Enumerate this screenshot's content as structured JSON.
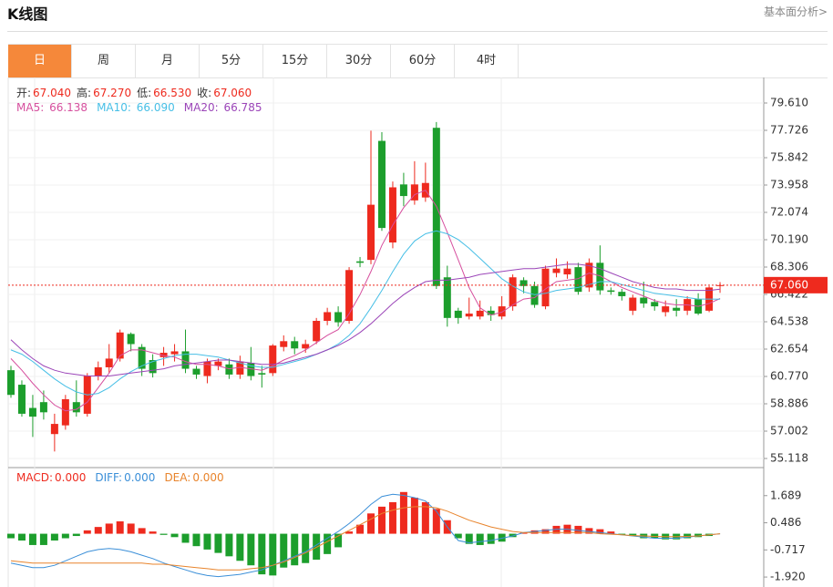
{
  "header": {
    "title": "K线图",
    "link": "基本面分析>"
  },
  "tabs": [
    "日",
    "周",
    "月",
    "5分",
    "15分",
    "30分",
    "60分",
    "4时"
  ],
  "active_tab": 0,
  "chart_data": [
    {
      "type": "candlestick",
      "ohlc_labels": [
        {
          "label": "开:",
          "value": "67.040"
        },
        {
          "label": "高:",
          "value": "67.270"
        },
        {
          "label": "低:",
          "value": "66.530"
        },
        {
          "label": "收:",
          "value": "67.060"
        }
      ],
      "up_color": "#ee2a1e",
      "down_color": "#1c9e2c",
      "open": [
        61.2,
        60.2,
        58.6,
        59.0,
        56.8,
        57.4,
        59.0,
        58.2,
        60.8,
        61.4,
        62.0,
        63.7,
        62.8,
        61.9,
        62.1,
        62.3,
        62.5,
        61.3,
        60.8,
        61.5,
        61.6,
        60.9,
        61.7,
        61.0,
        61.0,
        62.8,
        63.2,
        62.7,
        63.2,
        64.6,
        65.2,
        64.6,
        68.7,
        68.8,
        77.0,
        70.0,
        74.0,
        72.9,
        73.1,
        77.9,
        67.6,
        65.3,
        64.9,
        64.9,
        65.3,
        64.9,
        65.6,
        67.4,
        67.0,
        65.6,
        67.9,
        67.8,
        68.3,
        66.9,
        68.6,
        66.7,
        66.6,
        65.3,
        66.2,
        65.9,
        65.2,
        65.5,
        65.3,
        66.1,
        65.3,
        67.04
      ],
      "high": [
        61.5,
        60.5,
        59.5,
        59.8,
        58.2,
        59.5,
        60.5,
        61.0,
        61.8,
        63.0,
        64.0,
        63.8,
        63.0,
        62.3,
        62.8,
        63.0,
        64.0,
        61.5,
        62.0,
        62.0,
        62.0,
        62.2,
        62.8,
        61.5,
        63.0,
        63.6,
        63.5,
        63.3,
        64.8,
        65.5,
        65.6,
        68.3,
        69.0,
        77.7,
        77.6,
        74.2,
        74.8,
        75.6,
        75.5,
        78.3,
        68.4,
        65.5,
        66.2,
        66.0,
        65.6,
        66.3,
        67.8,
        67.6,
        67.3,
        68.4,
        68.9,
        68.7,
        68.6,
        68.9,
        69.8,
        66.9,
        66.8,
        66.4,
        67.3,
        66.1,
        66.0,
        66.1,
        66.3,
        66.5,
        67.0,
        67.27
      ],
      "low": [
        59.3,
        58.0,
        56.6,
        57.8,
        55.6,
        57.1,
        58.0,
        58.0,
        60.5,
        61.0,
        61.8,
        62.5,
        60.8,
        60.7,
        61.5,
        61.8,
        61.0,
        60.6,
        60.3,
        61.2,
        60.6,
        60.6,
        60.5,
        60.0,
        60.8,
        62.5,
        62.3,
        62.4,
        63.0,
        64.3,
        64.2,
        64.4,
        68.3,
        68.5,
        70.8,
        69.6,
        72.5,
        72.6,
        72.8,
        66.8,
        64.2,
        64.4,
        64.7,
        64.7,
        64.6,
        64.7,
        65.3,
        66.5,
        65.5,
        65.4,
        67.6,
        67.5,
        66.4,
        66.6,
        66.4,
        66.4,
        66.0,
        65.0,
        65.5,
        65.3,
        64.9,
        64.9,
        65.0,
        65.0,
        65.2,
        66.53
      ],
      "close": [
        59.5,
        58.2,
        58.0,
        58.3,
        57.5,
        59.2,
        58.3,
        60.8,
        61.4,
        62.0,
        63.8,
        63.0,
        61.3,
        61.0,
        62.4,
        62.5,
        61.3,
        60.9,
        61.8,
        61.8,
        60.9,
        61.8,
        60.8,
        60.9,
        62.9,
        63.2,
        62.7,
        63.0,
        64.6,
        65.2,
        64.5,
        68.1,
        68.6,
        72.6,
        71.0,
        73.8,
        73.2,
        74.0,
        74.1,
        67.0,
        64.8,
        64.8,
        65.1,
        65.3,
        65.0,
        65.6,
        67.6,
        67.0,
        65.7,
        68.2,
        68.2,
        68.2,
        66.6,
        68.6,
        66.7,
        66.6,
        66.3,
        66.2,
        65.8,
        65.6,
        65.6,
        65.3,
        66.1,
        65.1,
        66.9,
        67.06
      ],
      "series": [
        {
          "name": "MA5: ",
          "value_label": "66.138",
          "color": "#d64f9e",
          "values": [
            62.0,
            61.2,
            60.3,
            59.5,
            58.8,
            58.4,
            58.5,
            59.0,
            60.0,
            61.0,
            62.2,
            62.6,
            62.6,
            62.4,
            62.2,
            62.1,
            61.8,
            61.6,
            61.6,
            61.5,
            61.3,
            61.4,
            61.3,
            61.2,
            61.5,
            61.9,
            62.2,
            62.6,
            63.1,
            63.6,
            64.0,
            65.1,
            66.4,
            68.0,
            69.8,
            71.2,
            72.4,
            73.3,
            73.6,
            72.5,
            70.7,
            68.8,
            66.9,
            65.5,
            65.0,
            65.2,
            65.7,
            66.1,
            66.2,
            66.8,
            67.3,
            67.4,
            67.5,
            67.9,
            67.7,
            67.3,
            66.9,
            66.6,
            66.3,
            66.0,
            65.8,
            65.7,
            65.7,
            65.6,
            65.8,
            66.138
          ]
        },
        {
          "name": "MA10: ",
          "value_label": "66.090",
          "color": "#47bfe6",
          "values": [
            62.6,
            62.3,
            61.8,
            61.2,
            60.6,
            60.1,
            59.7,
            59.5,
            59.6,
            60.0,
            60.6,
            61.1,
            61.5,
            61.8,
            62.0,
            62.2,
            62.3,
            62.3,
            62.2,
            62.1,
            61.9,
            61.7,
            61.5,
            61.4,
            61.4,
            61.6,
            61.8,
            62.0,
            62.3,
            62.6,
            63.0,
            63.6,
            64.4,
            65.5,
            66.7,
            68.0,
            69.2,
            70.1,
            70.6,
            70.8,
            70.6,
            70.2,
            69.6,
            68.9,
            68.2,
            67.5,
            67.0,
            66.6,
            66.4,
            66.5,
            66.7,
            66.8,
            66.9,
            67.1,
            67.3,
            67.3,
            67.1,
            66.9,
            66.7,
            66.5,
            66.4,
            66.3,
            66.2,
            66.1,
            66.1,
            66.09
          ]
        },
        {
          "name": "MA20: ",
          "value_label": "66.785",
          "color": "#9b45b8",
          "values": [
            63.3,
            62.6,
            62.0,
            61.5,
            61.2,
            61.0,
            60.9,
            60.8,
            60.8,
            60.8,
            60.9,
            61.0,
            61.1,
            61.2,
            61.3,
            61.5,
            61.6,
            61.7,
            61.8,
            61.9,
            61.9,
            61.8,
            61.7,
            61.6,
            61.6,
            61.7,
            61.9,
            62.1,
            62.3,
            62.6,
            62.9,
            63.3,
            63.8,
            64.4,
            65.1,
            65.8,
            66.4,
            66.9,
            67.3,
            67.4,
            67.4,
            67.5,
            67.6,
            67.8,
            67.9,
            68.0,
            68.1,
            68.2,
            68.2,
            68.3,
            68.4,
            68.5,
            68.5,
            68.4,
            68.2,
            67.9,
            67.6,
            67.3,
            67.1,
            66.9,
            66.8,
            66.8,
            66.7,
            66.7,
            66.7,
            66.785
          ]
        }
      ],
      "last_price": 67.06,
      "last_price_label": "67.060",
      "ylim": [
        54.553,
        81.368
      ],
      "yticks": [
        {
          "value": 79.61,
          "label": "79.610"
        },
        77.726,
        75.842,
        73.958,
        72.074,
        {
          "value": 70.19,
          "label": "70.190"
        },
        68.306,
        66.422,
        64.538,
        62.654,
        {
          "value": 60.77,
          "label": "60.770"
        },
        58.886,
        57.002,
        55.118
      ],
      "grid": true
    },
    {
      "type": "macd",
      "series": [
        {
          "name": "MACD:",
          "value_label": "0.000",
          "color": "#ee2a1e",
          "values": [
            -0.2,
            -0.3,
            -0.5,
            -0.5,
            -0.3,
            -0.2,
            -0.1,
            0.15,
            0.3,
            0.45,
            0.55,
            0.45,
            0.25,
            0.1,
            -0.05,
            -0.15,
            -0.4,
            -0.55,
            -0.7,
            -0.85,
            -1.0,
            -1.2,
            -1.4,
            -1.8,
            -1.85,
            -1.5,
            -1.4,
            -1.3,
            -1.15,
            -0.9,
            -0.6,
            0.1,
            0.4,
            0.9,
            1.2,
            1.4,
            1.85,
            1.6,
            1.4,
            1.1,
            0.6,
            -0.2,
            -0.45,
            -0.5,
            -0.45,
            -0.35,
            -0.15,
            0.05,
            0.15,
            0.2,
            0.35,
            0.4,
            0.35,
            0.25,
            0.2,
            0.1,
            -0.05,
            -0.1,
            -0.2,
            -0.2,
            -0.25,
            -0.25,
            -0.2,
            -0.15,
            -0.1,
            0
          ]
        },
        {
          "name": "DIFF:",
          "value_label": "0.000",
          "color": "#3b8fd8",
          "values": [
            -1.3,
            -1.4,
            -1.5,
            -1.5,
            -1.4,
            -1.2,
            -1.0,
            -0.8,
            -0.7,
            -0.65,
            -0.7,
            -0.8,
            -0.95,
            -1.1,
            -1.3,
            -1.45,
            -1.6,
            -1.75,
            -1.85,
            -1.9,
            -1.85,
            -1.8,
            -1.7,
            -1.6,
            -1.4,
            -1.2,
            -1.0,
            -0.8,
            -0.5,
            -0.2,
            0.1,
            0.45,
            0.85,
            1.3,
            1.65,
            1.75,
            1.7,
            1.6,
            1.45,
            1.0,
            0.3,
            -0.3,
            -0.4,
            -0.35,
            -0.3,
            -0.2,
            -0.1,
            0.05,
            0.1,
            0.15,
            0.2,
            0.2,
            0.15,
            0.1,
            0.05,
            0.0,
            -0.05,
            -0.1,
            -0.15,
            -0.2,
            -0.2,
            -0.2,
            -0.15,
            -0.1,
            -0.05,
            0
          ]
        },
        {
          "name": "DEA:",
          "value_label": "0.000",
          "color": "#e8842c",
          "values": [
            -1.2,
            -1.25,
            -1.3,
            -1.3,
            -1.3,
            -1.3,
            -1.3,
            -1.3,
            -1.3,
            -1.3,
            -1.3,
            -1.3,
            -1.3,
            -1.35,
            -1.35,
            -1.4,
            -1.45,
            -1.5,
            -1.55,
            -1.6,
            -1.6,
            -1.6,
            -1.55,
            -1.5,
            -1.4,
            -1.25,
            -1.05,
            -0.85,
            -0.6,
            -0.35,
            -0.1,
            0.15,
            0.4,
            0.65,
            0.9,
            1.05,
            1.15,
            1.2,
            1.2,
            1.15,
            1.0,
            0.8,
            0.6,
            0.45,
            0.3,
            0.2,
            0.1,
            0.05,
            0.05,
            0.05,
            0.05,
            0.05,
            0.05,
            0.05,
            0.0,
            -0.02,
            -0.05,
            -0.08,
            -0.1,
            -0.12,
            -0.13,
            -0.13,
            -0.12,
            -0.1,
            -0.05,
            0
          ]
        }
      ],
      "ylim": [
        -2.361,
        2.892
      ],
      "yticks": [
        1.689,
        0.486,
        -0.717,
        {
          "value": -1.92,
          "label": "-1.920"
        }
      ]
    }
  ]
}
